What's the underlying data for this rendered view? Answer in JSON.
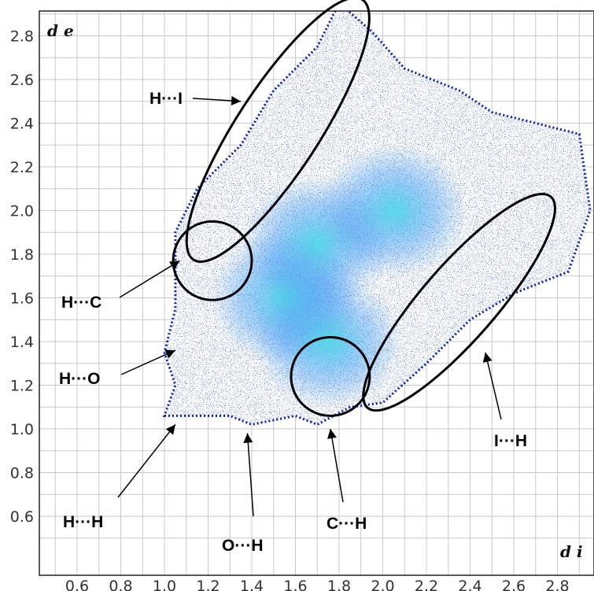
{
  "chart_data": {
    "type": "heatmap",
    "title": "",
    "xlabel": "d i",
    "ylabel": "d e",
    "xlim": [
      0.5,
      2.95
    ],
    "ylim": [
      0.45,
      2.95
    ],
    "xticks": [
      "0.6",
      "0.8",
      "1.0",
      "1.2",
      "1.4",
      "1.6",
      "1.8",
      "2.0",
      "2.2",
      "2.4",
      "2.6",
      "2.8"
    ],
    "yticks": [
      "0.6",
      "0.8",
      "1.0",
      "1.2",
      "1.4",
      "1.6",
      "1.8",
      "2.0",
      "2.2",
      "2.4",
      "2.6",
      "2.8"
    ],
    "grid": true,
    "colormap": [
      "#0a1fb0",
      "#0f4de6",
      "#2a8ff0",
      "#3fd6e6"
    ],
    "fingerprint_outline": [
      [
        1.0,
        1.06
      ],
      [
        1.3,
        1.06
      ],
      [
        1.4,
        1.02
      ],
      [
        1.6,
        1.06
      ],
      [
        1.7,
        1.02
      ],
      [
        1.85,
        1.1
      ],
      [
        2.0,
        1.12
      ],
      [
        2.2,
        1.3
      ],
      [
        2.4,
        1.5
      ],
      [
        2.6,
        1.62
      ],
      [
        2.85,
        1.72
      ],
      [
        2.95,
        2.0
      ],
      [
        2.9,
        2.35
      ],
      [
        2.7,
        2.4
      ],
      [
        2.5,
        2.45
      ],
      [
        2.35,
        2.55
      ],
      [
        2.1,
        2.65
      ],
      [
        1.95,
        2.82
      ],
      [
        1.8,
        2.95
      ],
      [
        1.7,
        2.75
      ],
      [
        1.5,
        2.55
      ],
      [
        1.35,
        2.3
      ],
      [
        1.15,
        2.1
      ],
      [
        1.05,
        1.9
      ],
      [
        1.05,
        1.55
      ],
      [
        1.0,
        1.35
      ],
      [
        1.05,
        1.2
      ]
    ],
    "bright_regions": [
      {
        "x": 1.55,
        "y": 1.6
      },
      {
        "x": 1.75,
        "y": 1.4
      },
      {
        "x": 1.7,
        "y": 1.85
      },
      {
        "x": 2.05,
        "y": 2.0
      }
    ],
    "annotations": [
      {
        "label": "H···I",
        "pointer": [
          1.35,
          2.5
        ]
      },
      {
        "label": "H···C",
        "pointer": [
          1.07,
          1.77
        ]
      },
      {
        "label": "H···O",
        "pointer": [
          1.05,
          1.36
        ]
      },
      {
        "label": "H···H",
        "pointer": [
          1.05,
          1.02
        ]
      },
      {
        "label": "O···H",
        "pointer": [
          1.38,
          0.98
        ]
      },
      {
        "label": "C···H",
        "pointer": [
          1.76,
          1.0
        ]
      },
      {
        "label": "I···H",
        "pointer": [
          2.47,
          1.35
        ]
      }
    ],
    "regions": [
      {
        "shape": "ellipse",
        "cx": 1.52,
        "cy": 2.37,
        "rx": 0.71,
        "ry": 0.19,
        "angle": -57
      },
      {
        "shape": "circle",
        "cx": 1.22,
        "cy": 1.77,
        "r": 0.18
      },
      {
        "shape": "circle",
        "cx": 1.76,
        "cy": 1.24,
        "r": 0.18
      },
      {
        "shape": "ellipse",
        "cx": 2.35,
        "cy": 1.58,
        "rx": 0.64,
        "ry": 0.17,
        "angle": -49
      }
    ]
  }
}
